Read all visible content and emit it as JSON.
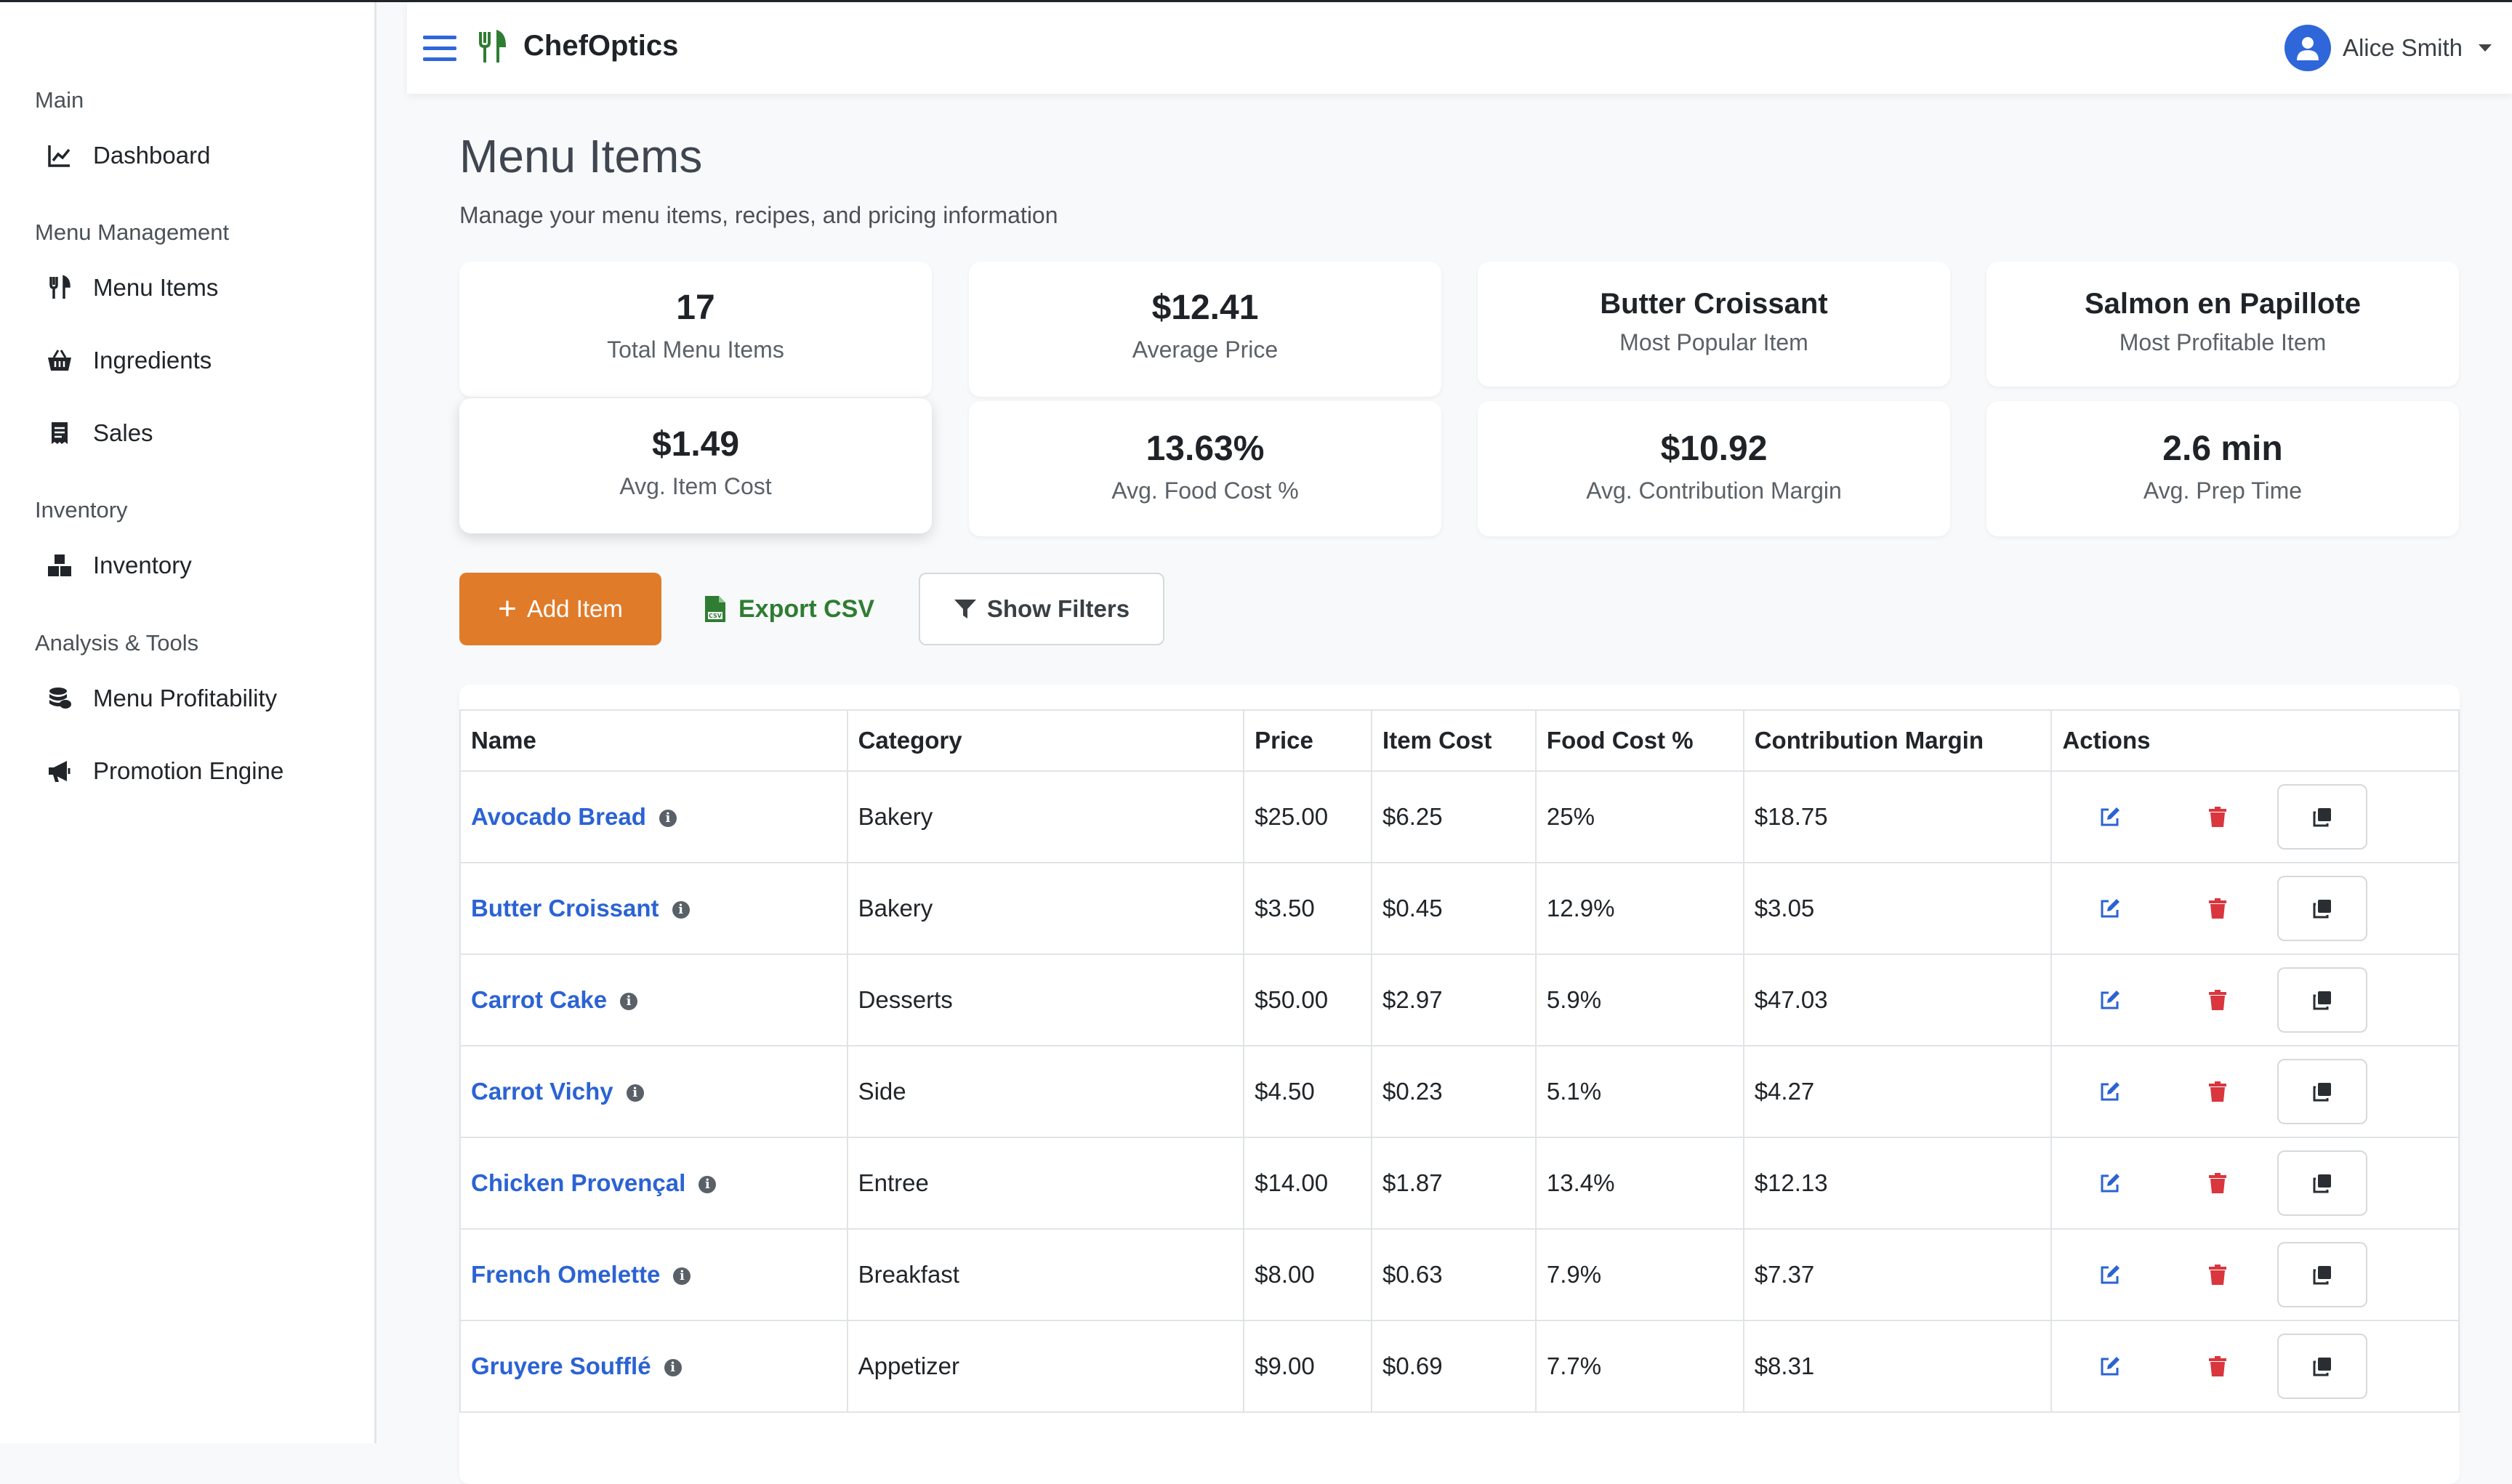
{
  "app": {
    "name": "ChefOptics"
  },
  "user": {
    "name": "Alice Smith"
  },
  "sidebar": {
    "sections": [
      {
        "title": "Main",
        "items": [
          {
            "label": "Dashboard",
            "icon": "chart-line-icon"
          }
        ]
      },
      {
        "title": "Menu Management",
        "items": [
          {
            "label": "Menu Items",
            "icon": "utensils-icon"
          },
          {
            "label": "Ingredients",
            "icon": "basket-icon"
          },
          {
            "label": "Sales",
            "icon": "receipt-icon"
          }
        ]
      },
      {
        "title": "Inventory",
        "items": [
          {
            "label": "Inventory",
            "icon": "boxes-icon"
          }
        ]
      },
      {
        "title": "Analysis & Tools",
        "items": [
          {
            "label": "Menu Profitability",
            "icon": "coins-icon"
          },
          {
            "label": "Promotion Engine",
            "icon": "megaphone-icon"
          }
        ]
      }
    ]
  },
  "page": {
    "title": "Menu Items",
    "subtitle": "Manage your menu items, recipes, and pricing information"
  },
  "stats": [
    {
      "value": "17",
      "label": "Total Menu Items"
    },
    {
      "value": "$12.41",
      "label": "Average Price"
    },
    {
      "value": "Butter Croissant",
      "label": "Most Popular Item"
    },
    {
      "value": "Salmon en Papillote",
      "label": "Most Profitable Item"
    },
    {
      "value": "$1.49",
      "label": "Avg. Item Cost"
    },
    {
      "value": "13.63%",
      "label": "Avg. Food Cost %"
    },
    {
      "value": "$10.92",
      "label": "Avg. Contribution Margin"
    },
    {
      "value": "2.6 min",
      "label": "Avg. Prep Time"
    }
  ],
  "toolbar": {
    "add_label": "Add Item",
    "export_label": "Export CSV",
    "filter_label": "Show Filters"
  },
  "table": {
    "headers": [
      "Name",
      "Category",
      "Price",
      "Item Cost",
      "Food Cost %",
      "Contribution Margin",
      "Actions"
    ],
    "rows": [
      {
        "name": "Avocado Bread",
        "category": "Bakery",
        "price": "$25.00",
        "cost": "$6.25",
        "food_cost": "25%",
        "margin": "$18.75"
      },
      {
        "name": "Butter Croissant",
        "category": "Bakery",
        "price": "$3.50",
        "cost": "$0.45",
        "food_cost": "12.9%",
        "margin": "$3.05"
      },
      {
        "name": "Carrot Cake",
        "category": "Desserts",
        "price": "$50.00",
        "cost": "$2.97",
        "food_cost": "5.9%",
        "margin": "$47.03"
      },
      {
        "name": "Carrot Vichy",
        "category": "Side",
        "price": "$4.50",
        "cost": "$0.23",
        "food_cost": "5.1%",
        "margin": "$4.27"
      },
      {
        "name": "Chicken Provençal",
        "category": "Entree",
        "price": "$14.00",
        "cost": "$1.87",
        "food_cost": "13.4%",
        "margin": "$12.13"
      },
      {
        "name": "French Omelette",
        "category": "Breakfast",
        "price": "$8.00",
        "cost": "$0.63",
        "food_cost": "7.9%",
        "margin": "$7.37"
      },
      {
        "name": "Gruyere Soufflé",
        "category": "Appetizer",
        "price": "$9.00",
        "cost": "$0.69",
        "food_cost": "7.7%",
        "margin": "$8.31"
      }
    ]
  },
  "colors": {
    "accent": "#e07b2a",
    "link": "#2b63d4",
    "export": "#2e7d32",
    "delete": "#d9363e"
  }
}
